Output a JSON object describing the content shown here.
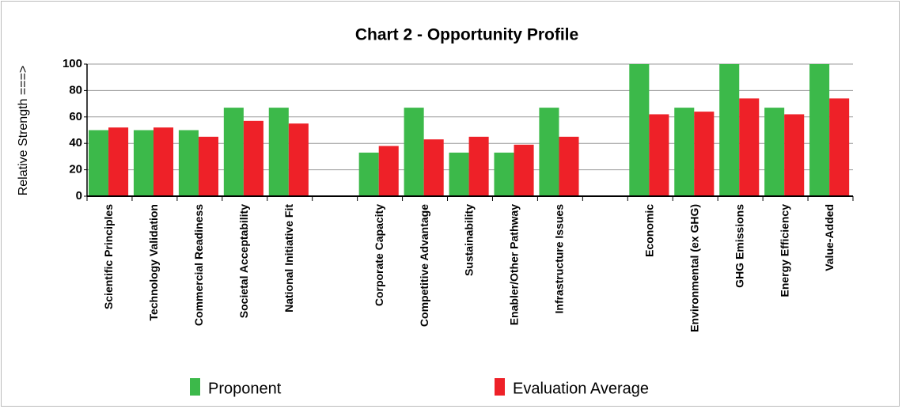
{
  "chart_data": {
    "type": "bar",
    "title": "Chart 2 - Opportunity Profile",
    "y_label": "Relative Strength ===>",
    "categories": [
      "Scientific Principles",
      "Technology Validation",
      "Commercial Readiness",
      "Societal Acceptability",
      "National Initiative Fit",
      null,
      "Corporate Capacity",
      "Competitive Advantage",
      "Sustainability",
      "Enabler/Other Pathway",
      "Infrastructure Issues",
      null,
      "Economic",
      "Environmental (ex GHG)",
      "GHG Emissions",
      "Energy Efficiency",
      "Value-Added"
    ],
    "series": [
      {
        "name": "Proponent",
        "color": "#3cb94a",
        "values": [
          50,
          50,
          50,
          67,
          67,
          null,
          33,
          67,
          33,
          33,
          67,
          null,
          100,
          67,
          100,
          67,
          100
        ]
      },
      {
        "name": "Evaluation Average",
        "color": "#ee2128",
        "values": [
          52,
          52,
          45,
          57,
          55,
          null,
          38,
          43,
          45,
          39,
          45,
          null,
          62,
          64,
          74,
          62,
          74
        ]
      }
    ],
    "ylim": [
      0,
      100
    ],
    "yticks": [
      0,
      20,
      40,
      60,
      80,
      100
    ],
    "grid": true
  }
}
